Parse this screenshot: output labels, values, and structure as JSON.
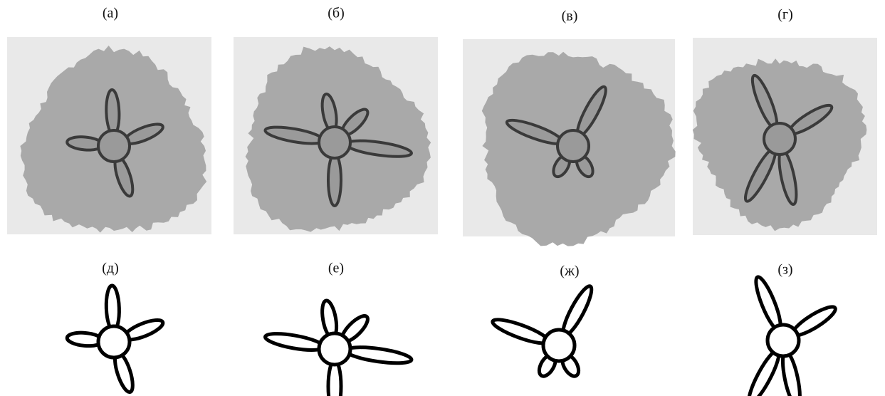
{
  "panels": [
    {
      "label": "(а)"
    },
    {
      "label": "(б)"
    },
    {
      "label": "(в)"
    },
    {
      "label": "(г)"
    },
    {
      "label": "(д)"
    },
    {
      "label": "(е)"
    },
    {
      "label": "(ж)"
    },
    {
      "label": "(з)"
    }
  ]
}
